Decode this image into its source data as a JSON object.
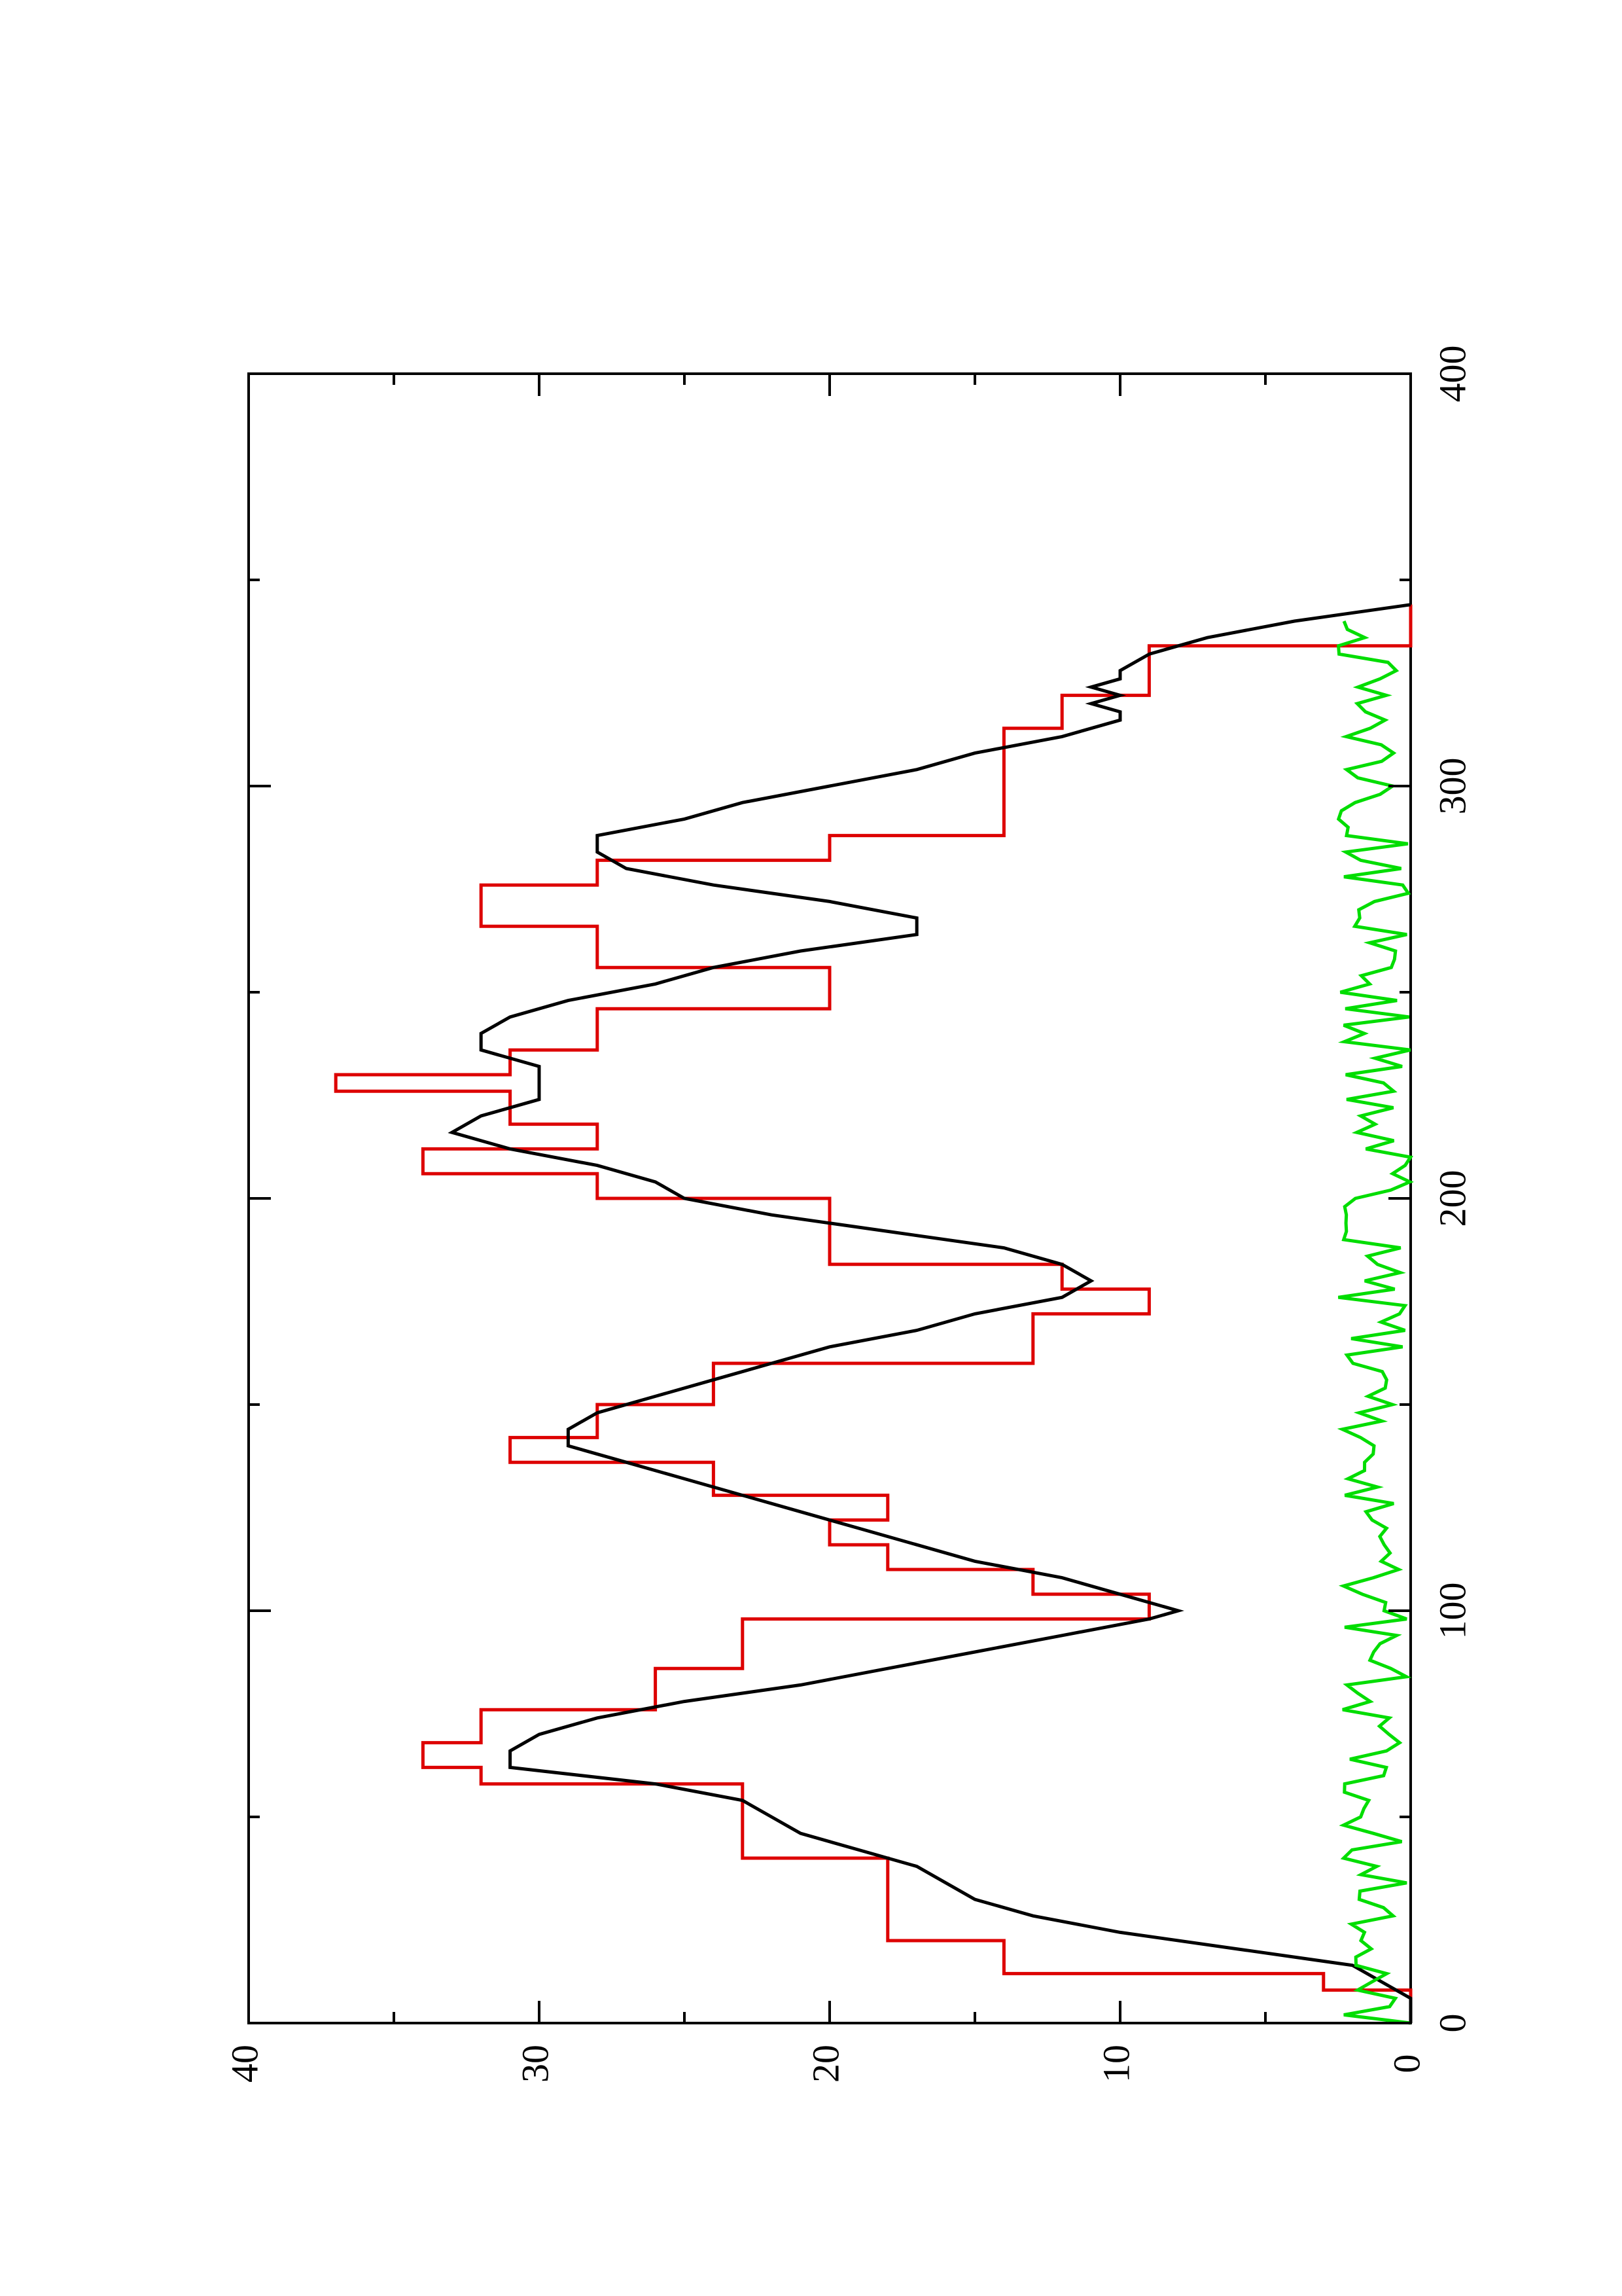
{
  "chart_data": {
    "type": "line",
    "orientation": "rotated-90-ccw",
    "xlim": [
      0,
      400
    ],
    "ylim": [
      0,
      40
    ],
    "x_ticks": [
      0,
      100,
      200,
      300,
      400
    ],
    "x_minor_ticks": [
      50,
      150,
      250,
      350
    ],
    "y_ticks": [
      0,
      10,
      20,
      30,
      40
    ],
    "y_minor_ticks": [
      5,
      15,
      25,
      35
    ],
    "grid": false,
    "series": [
      {
        "color": "#dd0000",
        "style": "step",
        "x": [
          0,
          8,
          8,
          12,
          12,
          20,
          20,
          28,
          28,
          40,
          40,
          50,
          50,
          58,
          58,
          62,
          62,
          68,
          68,
          76,
          76,
          86,
          86,
          98,
          98,
          104,
          104,
          110,
          110,
          116,
          116,
          122,
          122,
          128,
          128,
          136,
          136,
          142,
          142,
          150,
          150,
          160,
          160,
          172,
          172,
          178,
          178,
          184,
          184,
          200,
          200,
          206,
          206,
          212,
          212,
          218,
          218,
          226,
          226,
          230,
          230,
          236,
          236,
          246,
          246,
          256,
          256,
          266,
          266,
          276,
          276,
          282,
          282,
          288,
          288,
          304,
          304,
          314,
          314,
          322,
          322,
          328,
          328,
          334,
          334,
          344
        ],
        "y": [
          0,
          0,
          3,
          3,
          14,
          14,
          18,
          18,
          18,
          18,
          23,
          23,
          23,
          23,
          32,
          32,
          34,
          34,
          32,
          32,
          26,
          26,
          23,
          23,
          9,
          9,
          13,
          13,
          18,
          18,
          20,
          20,
          18,
          18,
          24,
          24,
          31,
          31,
          28,
          28,
          24,
          24,
          13,
          13,
          9,
          9,
          12,
          12,
          20,
          20,
          28,
          28,
          34,
          34,
          28,
          28,
          31,
          31,
          37,
          37,
          31,
          31,
          28,
          28,
          20,
          20,
          28,
          28,
          32,
          32,
          28,
          28,
          20,
          20,
          14,
          14,
          14,
          14,
          12,
          12,
          9,
          9,
          9,
          9,
          0,
          0
        ]
      },
      {
        "color": "#000000",
        "style": "line",
        "x": [
          0,
          6,
          10,
          14,
          18,
          22,
          26,
          30,
          34,
          38,
          42,
          46,
          50,
          54,
          58,
          62,
          66,
          70,
          74,
          78,
          82,
          86,
          90,
          94,
          98,
          100,
          104,
          108,
          112,
          116,
          120,
          124,
          128,
          132,
          136,
          140,
          144,
          148,
          152,
          156,
          160,
          164,
          168,
          172,
          176,
          180,
          184,
          188,
          192,
          196,
          200,
          204,
          208,
          212,
          216,
          220,
          224,
          228,
          232,
          236,
          240,
          244,
          248,
          252,
          256,
          260,
          264,
          268,
          272,
          276,
          280,
          284,
          288,
          292,
          296,
          300,
          304,
          308,
          312,
          316,
          318,
          320,
          322,
          324,
          326,
          328,
          332,
          336,
          340,
          344
        ],
        "y": [
          0,
          0,
          1,
          2,
          6,
          10,
          13,
          15,
          16,
          17,
          19,
          21,
          22,
          23,
          26,
          31,
          31,
          30,
          28,
          25,
          21,
          18,
          15,
          12,
          9,
          8,
          10,
          12,
          15,
          17,
          19,
          21,
          23,
          25,
          27,
          29,
          29,
          28,
          26,
          24,
          22,
          20,
          17,
          15,
          12,
          11,
          12,
          14,
          18,
          22,
          25,
          26,
          28,
          31,
          33,
          32,
          30,
          30,
          30,
          32,
          32,
          31,
          29,
          26,
          24,
          21,
          17,
          17,
          20,
          24,
          27,
          28,
          28,
          25,
          23,
          20,
          17,
          15,
          12,
          10,
          10,
          11,
          10,
          11,
          10,
          10,
          9,
          7,
          4,
          0
        ]
      },
      {
        "color": "#00dd00",
        "style": "noise",
        "x_start": 0,
        "x_end": 340,
        "x_step": 2,
        "y_min": 0,
        "y_max": 2.5
      }
    ]
  }
}
